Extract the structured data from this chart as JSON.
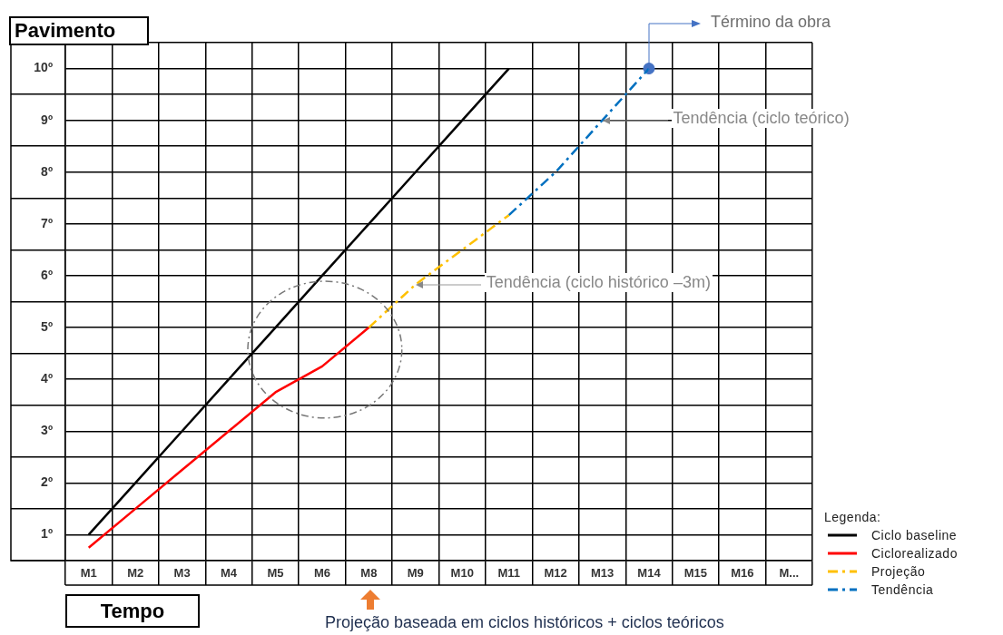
{
  "chart_data": {
    "type": "line",
    "xlabel": "Tempo",
    "ylabel": "Pavimento",
    "legend_title": "Legenda:",
    "legend": "bottom right",
    "grid": true,
    "marker": "none",
    "categories": [
      "M1",
      "M2",
      "M3",
      "M4",
      "M5",
      "M6",
      "M8",
      "M9",
      "M10",
      "M11",
      "M12",
      "M13",
      "M14",
      "M15",
      "M16",
      "M..."
    ],
    "ylim": [
      0,
      10
    ],
    "yticks": [
      {
        "value": 0,
        "label": null
      },
      {
        "value": 0.5,
        "label": "1º"
      },
      {
        "value": 1,
        "label": null
      },
      {
        "value": 1.5,
        "label": "2º"
      },
      {
        "value": 2,
        "label": null
      },
      {
        "value": 2.5,
        "label": "3º"
      },
      {
        "value": 3,
        "label": null
      },
      {
        "value": 3.5,
        "label": "4º"
      },
      {
        "value": 4,
        "label": null
      },
      {
        "value": 4.5,
        "label": "5º"
      },
      {
        "value": 5,
        "label": null
      },
      {
        "value": 5.5,
        "label": "6º"
      },
      {
        "value": 6,
        "label": null
      },
      {
        "value": 6.5,
        "label": "7º"
      },
      {
        "value": 7,
        "label": null
      },
      {
        "value": 7.5,
        "label": "8º"
      },
      {
        "value": 8,
        "label": null
      },
      {
        "value": 8.5,
        "label": "9º"
      },
      {
        "value": 9,
        "label": null
      },
      {
        "value": 9.5,
        "label": "10º"
      },
      {
        "value": 10,
        "label": null
      }
    ],
    "series": [
      {
        "name": "Ciclo baseline",
        "color": "#000000",
        "values": [
          0.5,
          1.5,
          2.5,
          3.5,
          4.5,
          5.5,
          6.5,
          7.5,
          8.5,
          9.5,
          null,
          null,
          null,
          null,
          null,
          null
        ]
      },
      {
        "name": "Ciclorealizado",
        "color": "#ff0000",
        "values": [
          0.25,
          1,
          1.75,
          2.5,
          3.25,
          3.75,
          4.5,
          null,
          null,
          null,
          null,
          null,
          null,
          null,
          null,
          null
        ]
      },
      {
        "name": "Projeção",
        "color": "#ffc000",
        "values": [
          null,
          null,
          null,
          null,
          null,
          null,
          4.5,
          5.33,
          6,
          6.67,
          null,
          null,
          null,
          null,
          null,
          null
        ],
        "line_style": "dashed"
      },
      {
        "name": "Tendência",
        "color": "#0070c0",
        "values": [
          null,
          null,
          null,
          null,
          null,
          null,
          null,
          null,
          null,
          6.67,
          7.5,
          8.5,
          9.5,
          null,
          null,
          null
        ],
        "line_style": "dashed"
      },
      {
        "type": "scatter",
        "color": "#4472c4",
        "values": [
          null,
          null,
          null,
          null,
          null,
          null,
          null,
          null,
          null,
          null,
          null,
          null,
          9.5,
          null,
          null,
          null
        ],
        "marker": "circle"
      }
    ],
    "annotations": [
      {
        "text": "Término da obra",
        "x": "M14",
        "y": 9.5
      },
      {
        "text": "Tendência (ciclo teórico)",
        "x": "M13",
        "y": 8.5
      },
      {
        "text": "Tendência (ciclo histórico –3m)",
        "x": "M9",
        "y": 5.33
      },
      "Projeção baseada em ciclos históricos + ciclos teóricos"
    ]
  }
}
